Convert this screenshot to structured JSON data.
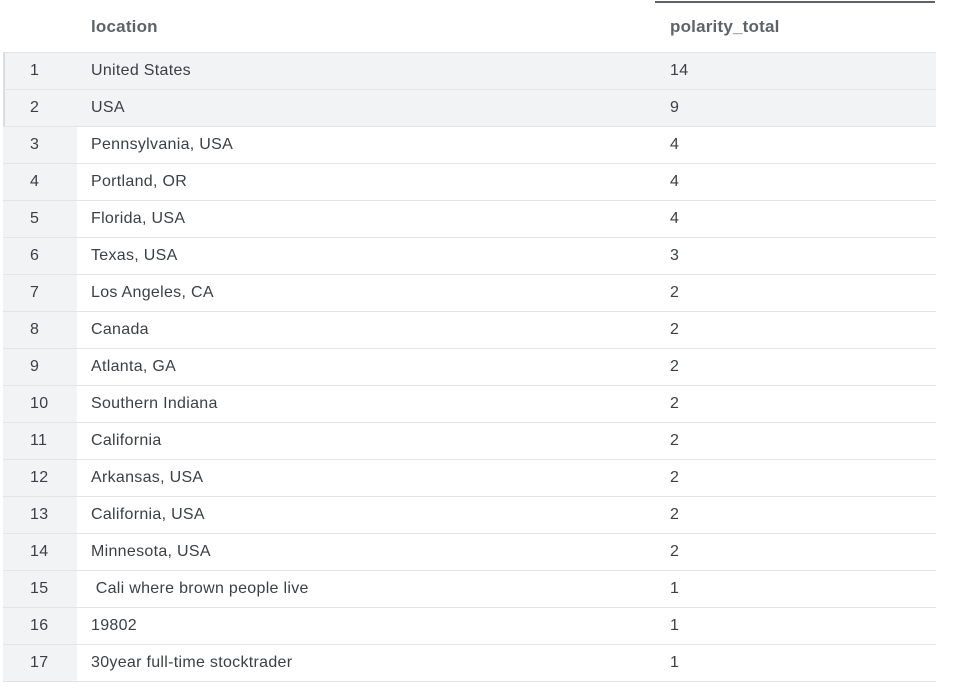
{
  "table": {
    "columns": [
      "location",
      "polarity_total"
    ],
    "rows": [
      {
        "index": "1",
        "location": "United States",
        "polarity_total": "14"
      },
      {
        "index": "2",
        "location": "USA",
        "polarity_total": "9"
      },
      {
        "index": "3",
        "location": "Pennsylvania, USA",
        "polarity_total": "4"
      },
      {
        "index": "4",
        "location": "Portland, OR",
        "polarity_total": "4"
      },
      {
        "index": "5",
        "location": "Florida, USA",
        "polarity_total": "4"
      },
      {
        "index": "6",
        "location": "Texas, USA",
        "polarity_total": "3"
      },
      {
        "index": "7",
        "location": "Los Angeles, CA",
        "polarity_total": "2"
      },
      {
        "index": "8",
        "location": "Canada",
        "polarity_total": "2"
      },
      {
        "index": "9",
        "location": "Atlanta, GA",
        "polarity_total": "2"
      },
      {
        "index": "10",
        "location": "Southern Indiana",
        "polarity_total": "2"
      },
      {
        "index": "11",
        "location": "California",
        "polarity_total": "2"
      },
      {
        "index": "12",
        "location": "Arkansas, USA",
        "polarity_total": "2"
      },
      {
        "index": "13",
        "location": "California, USA",
        "polarity_total": "2"
      },
      {
        "index": "14",
        "location": "Minnesota, USA",
        "polarity_total": "2"
      },
      {
        "index": "15",
        "location": " Cali where brown people live",
        "polarity_total": "1"
      },
      {
        "index": "16",
        "location": "19802",
        "polarity_total": "1"
      },
      {
        "index": "17",
        "location": "30year full-time stocktrader",
        "polarity_total": "1"
      }
    ]
  }
}
